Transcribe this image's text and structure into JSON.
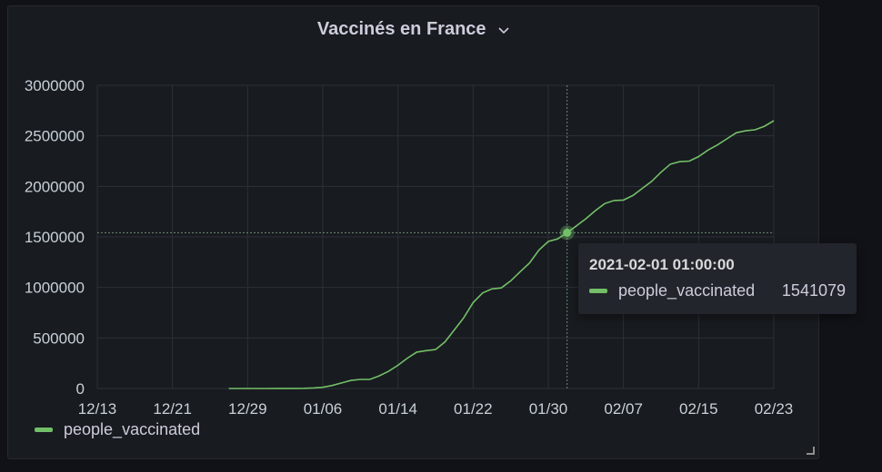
{
  "panel": {
    "title": "Vaccinés en France",
    "title_menu_icon": "chevron-down-icon"
  },
  "colors": {
    "series": "#73bf69",
    "background": "#181b1f",
    "grid": "#2c3038",
    "text": "#c7d0d9"
  },
  "chart_data": {
    "type": "line",
    "title": "Vaccinés en France",
    "xlabel": "",
    "ylabel": "",
    "x_tick_labels": [
      "12/13",
      "12/21",
      "12/29",
      "01/06",
      "01/14",
      "01/22",
      "01/30",
      "02/07",
      "02/15",
      "02/23"
    ],
    "y_tick_labels": [
      "0",
      "500000",
      "1000000",
      "1500000",
      "2000000",
      "2500000",
      "3000000"
    ],
    "ylim": [
      0,
      3000000
    ],
    "xlim": [
      "2020-12-13",
      "2021-02-23"
    ],
    "grid": true,
    "legend_position": "bottom-left",
    "series": [
      {
        "name": "people_vaccinated",
        "color": "#73bf69",
        "points": [
          [
            "2020-12-27",
            0
          ],
          [
            "2020-12-28",
            0
          ],
          [
            "2020-12-29",
            200
          ],
          [
            "2020-12-30",
            300
          ],
          [
            "2020-12-31",
            400
          ],
          [
            "2021-01-01",
            600
          ],
          [
            "2021-01-02",
            800
          ],
          [
            "2021-01-03",
            1000
          ],
          [
            "2021-01-04",
            2000
          ],
          [
            "2021-01-05",
            5000
          ],
          [
            "2021-01-06",
            12000
          ],
          [
            "2021-01-07",
            30000
          ],
          [
            "2021-01-08",
            55000
          ],
          [
            "2021-01-09",
            80000
          ],
          [
            "2021-01-10",
            90000
          ],
          [
            "2021-01-11",
            90000
          ],
          [
            "2021-01-12",
            125000
          ],
          [
            "2021-01-13",
            170000
          ],
          [
            "2021-01-14",
            230000
          ],
          [
            "2021-01-15",
            300000
          ],
          [
            "2021-01-16",
            360000
          ],
          [
            "2021-01-17",
            375000
          ],
          [
            "2021-01-18",
            385000
          ],
          [
            "2021-01-19",
            460000
          ],
          [
            "2021-01-20",
            580000
          ],
          [
            "2021-01-21",
            700000
          ],
          [
            "2021-01-22",
            850000
          ],
          [
            "2021-01-23",
            945000
          ],
          [
            "2021-01-24",
            985000
          ],
          [
            "2021-01-25",
            995000
          ],
          [
            "2021-01-26",
            1065000
          ],
          [
            "2021-01-27",
            1155000
          ],
          [
            "2021-01-28",
            1240000
          ],
          [
            "2021-01-29",
            1370000
          ],
          [
            "2021-01-30",
            1455000
          ],
          [
            "2021-01-31",
            1480000
          ],
          [
            "2021-02-01",
            1541079
          ],
          [
            "2021-02-02",
            1610000
          ],
          [
            "2021-02-03",
            1680000
          ],
          [
            "2021-02-04",
            1760000
          ],
          [
            "2021-02-05",
            1830000
          ],
          [
            "2021-02-06",
            1860000
          ],
          [
            "2021-02-07",
            1865000
          ],
          [
            "2021-02-08",
            1910000
          ],
          [
            "2021-02-09",
            1980000
          ],
          [
            "2021-02-10",
            2050000
          ],
          [
            "2021-02-11",
            2140000
          ],
          [
            "2021-02-12",
            2220000
          ],
          [
            "2021-02-13",
            2245000
          ],
          [
            "2021-02-14",
            2250000
          ],
          [
            "2021-02-15",
            2295000
          ],
          [
            "2021-02-16",
            2360000
          ],
          [
            "2021-02-17",
            2410000
          ],
          [
            "2021-02-18",
            2470000
          ],
          [
            "2021-02-19",
            2530000
          ],
          [
            "2021-02-20",
            2550000
          ],
          [
            "2021-02-21",
            2560000
          ],
          [
            "2021-02-22",
            2595000
          ],
          [
            "2021-02-23",
            2650000
          ]
        ]
      }
    ]
  },
  "hover": {
    "x": "2021-02-01",
    "y": 1541079
  },
  "tooltip": {
    "time": "2021-02-01 01:00:00",
    "series_name": "people_vaccinated",
    "value": "1541079"
  },
  "legend": {
    "label": "people_vaccinated"
  }
}
